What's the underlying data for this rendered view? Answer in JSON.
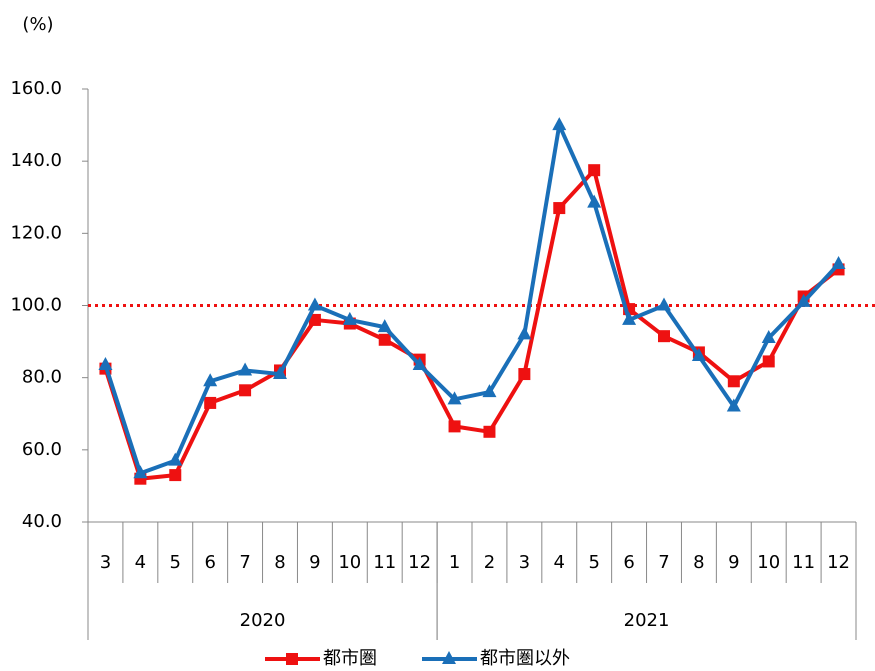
{
  "chart_data": {
    "type": "line",
    "y_unit": "(%)",
    "categories": [
      "3",
      "4",
      "5",
      "6",
      "7",
      "8",
      "9",
      "10",
      "11",
      "12",
      "1",
      "2",
      "3",
      "4",
      "5",
      "6",
      "7",
      "8",
      "9",
      "10",
      "11",
      "12"
    ],
    "year_groups": [
      {
        "label": "2020",
        "count": 10
      },
      {
        "label": "2021",
        "count": 12
      }
    ],
    "series": [
      {
        "name": "都市圏",
        "color": "#ee1111",
        "marker": "square",
        "values": [
          82.5,
          52,
          53,
          73,
          76.5,
          82,
          96,
          95,
          90.5,
          85,
          66.5,
          65,
          81,
          127,
          137.5,
          99,
          91.5,
          87,
          79,
          84.5,
          102.5,
          110
        ]
      },
      {
        "name": "都市圏以外",
        "color": "#1a6fb8",
        "marker": "triangle",
        "values": [
          83.5,
          53.5,
          57,
          79,
          82,
          81,
          100,
          96,
          94,
          83.5,
          74,
          76,
          92,
          150,
          128.5,
          96,
          100,
          86,
          72,
          91,
          101,
          111.5
        ]
      }
    ],
    "ylim": [
      40,
      160
    ],
    "yticks": [
      {
        "value": 40,
        "label": "40.0"
      },
      {
        "value": 60,
        "label": "60.0"
      },
      {
        "value": 80,
        "label": "80.0"
      },
      {
        "value": 100,
        "label": "100.0"
      },
      {
        "value": 120,
        "label": "120.0"
      },
      {
        "value": 140,
        "label": "140.0"
      },
      {
        "value": 160,
        "label": "160.0"
      }
    ],
    "reference_line": {
      "value": 100,
      "color": "#ee1111"
    },
    "legend": "bottom"
  }
}
